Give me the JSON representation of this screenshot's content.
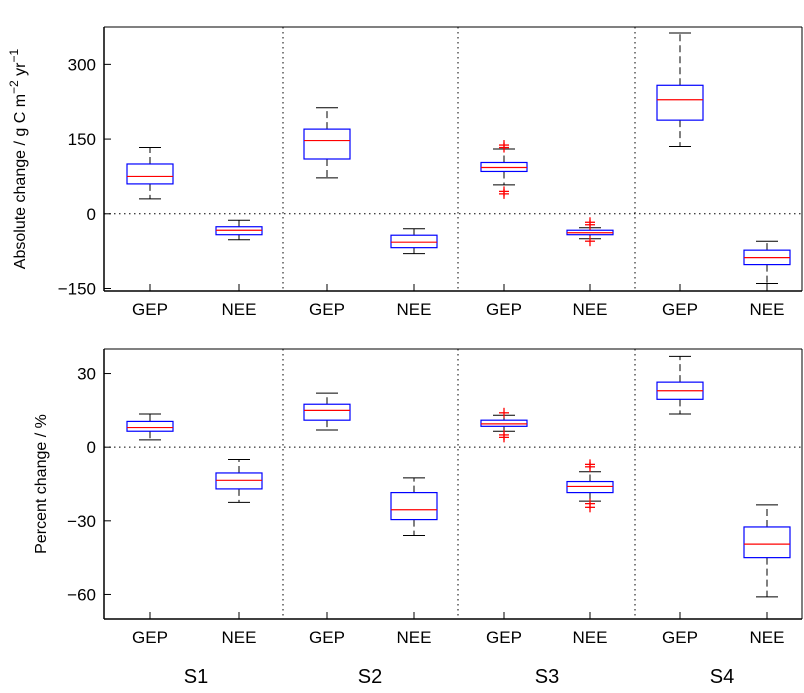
{
  "chart_data": [
    {
      "type": "box",
      "ylabel": "Absolute change / g C m",
      "ylabel_sup1": "−2",
      "ylabel_mid": " yr",
      "ylabel_sup2": "−1",
      "ylim": [
        -155,
        375
      ],
      "yticks": [
        300,
        150,
        0,
        -150
      ],
      "ytick_labels": [
        "300",
        "150",
        "0",
        "−150"
      ],
      "zero_line": 0,
      "boxes": [
        {
          "label": "GEP",
          "group": "S1",
          "wlo": 30,
          "q1": 60,
          "med": 75,
          "q3": 100,
          "whi": 133,
          "outliers": []
        },
        {
          "label": "NEE",
          "group": "S1",
          "wlo": -52,
          "q1": -42,
          "med": -33,
          "q3": -26,
          "whi": -13,
          "outliers": []
        },
        {
          "label": "GEP",
          "group": "S2",
          "wlo": 72,
          "q1": 110,
          "med": 147,
          "q3": 170,
          "whi": 213,
          "outliers": []
        },
        {
          "label": "NEE",
          "group": "S2",
          "wlo": -80,
          "q1": -68,
          "med": -57,
          "q3": -43,
          "whi": -30,
          "outliers": []
        },
        {
          "label": "GEP",
          "group": "S3",
          "wlo": 58,
          "q1": 85,
          "med": 93,
          "q3": 103,
          "whi": 130,
          "outliers": [
            138,
            133,
            45,
            40
          ]
        },
        {
          "label": "NEE",
          "group": "S3",
          "wlo": -50,
          "q1": -42,
          "med": -38,
          "q3": -33,
          "whi": -28,
          "outliers": [
            -17,
            -22,
            -55
          ]
        },
        {
          "label": "GEP",
          "group": "S4",
          "wlo": 135,
          "q1": 188,
          "med": 229,
          "q3": 258,
          "whi": 363,
          "outliers": []
        },
        {
          "label": "NEE",
          "group": "S4",
          "wlo": -140,
          "q1": -102,
          "med": -88,
          "q3": -73,
          "whi": -55,
          "outliers": []
        }
      ]
    },
    {
      "type": "box",
      "ylabel": "Percent change / %",
      "ylim": [
        -70,
        40
      ],
      "yticks": [
        30,
        0,
        -30,
        -60
      ],
      "ytick_labels": [
        "30",
        "0",
        "−30",
        "−60"
      ],
      "zero_line": 0,
      "boxes": [
        {
          "label": "GEP",
          "group": "S1",
          "wlo": 3,
          "q1": 6.5,
          "med": 8,
          "q3": 10.5,
          "whi": 13.5,
          "outliers": []
        },
        {
          "label": "NEE",
          "group": "S1",
          "wlo": -22.5,
          "q1": -17,
          "med": -13.5,
          "q3": -10.5,
          "whi": -5,
          "outliers": []
        },
        {
          "label": "GEP",
          "group": "S2",
          "wlo": 7,
          "q1": 11,
          "med": 15,
          "q3": 17.5,
          "whi": 22,
          "outliers": []
        },
        {
          "label": "NEE",
          "group": "S2",
          "wlo": -36,
          "q1": -29.5,
          "med": -25.5,
          "q3": -18.5,
          "whi": -12.5,
          "outliers": []
        },
        {
          "label": "GEP",
          "group": "S3",
          "wlo": 6.5,
          "q1": 8.5,
          "med": 9.5,
          "q3": 11,
          "whi": 13,
          "outliers": [
            14,
            5,
            4
          ]
        },
        {
          "label": "NEE",
          "group": "S3",
          "wlo": -22,
          "q1": -18.5,
          "med": -16,
          "q3": -14,
          "whi": -10,
          "outliers": [
            -7,
            -8,
            -23,
            -24.5
          ]
        },
        {
          "label": "GEP",
          "group": "S4",
          "wlo": 13.5,
          "q1": 19.5,
          "med": 23,
          "q3": 26.5,
          "whi": 37,
          "outliers": []
        },
        {
          "label": "NEE",
          "group": "S4",
          "wlo": -61,
          "q1": -45,
          "med": -39.5,
          "q3": -32.5,
          "whi": -23.5,
          "outliers": []
        }
      ]
    }
  ],
  "group_labels": [
    "S1",
    "S2",
    "S3",
    "S4"
  ],
  "colors": {
    "box": "#0000ff",
    "median": "#ff0000",
    "whisker": "#000000",
    "outlier": "#ff0000",
    "grid": "#000000"
  }
}
